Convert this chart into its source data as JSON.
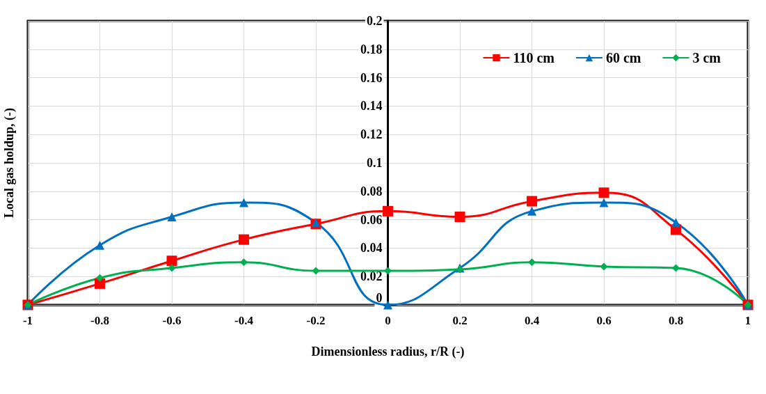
{
  "chart_data": {
    "type": "line",
    "xlabel": "Dimensionless radius, r/R (-)",
    "ylabel": "Local gas holdup, (-)",
    "x": [
      -1,
      -0.8,
      -0.6,
      -0.4,
      -0.2,
      0,
      0.2,
      0.4,
      0.6,
      0.8,
      1
    ],
    "series": [
      {
        "name": "110 cm",
        "color": "#ff0000",
        "marker": "square",
        "values": [
          0,
          0.015,
          0.031,
          0.046,
          0.057,
          0.066,
          0.062,
          0.073,
          0.079,
          0.053,
          0
        ]
      },
      {
        "name": "60 cm",
        "color": "#0070c0",
        "marker": "triangle",
        "values": [
          0,
          0.042,
          0.062,
          0.072,
          0.058,
          0,
          0.026,
          0.066,
          0.072,
          0.058,
          0
        ]
      },
      {
        "name": "3 cm",
        "color": "#00b050",
        "marker": "diamond",
        "values": [
          0,
          0.019,
          0.026,
          0.03,
          0.024,
          0.024,
          0.025,
          0.03,
          0.027,
          0.026,
          0
        ]
      }
    ],
    "xlim": [
      -1,
      1
    ],
    "xticks": [
      -1,
      -0.8,
      -0.6,
      -0.4,
      -0.2,
      0,
      0.2,
      0.4,
      0.6,
      0.8,
      1
    ],
    "ylim": [
      0,
      0.2
    ],
    "yticks": [
      0,
      0.02,
      0.04,
      0.06,
      0.08,
      0.1,
      0.12,
      0.14,
      0.16,
      0.18,
      0.2
    ],
    "grid": true,
    "legend": "top right"
  }
}
